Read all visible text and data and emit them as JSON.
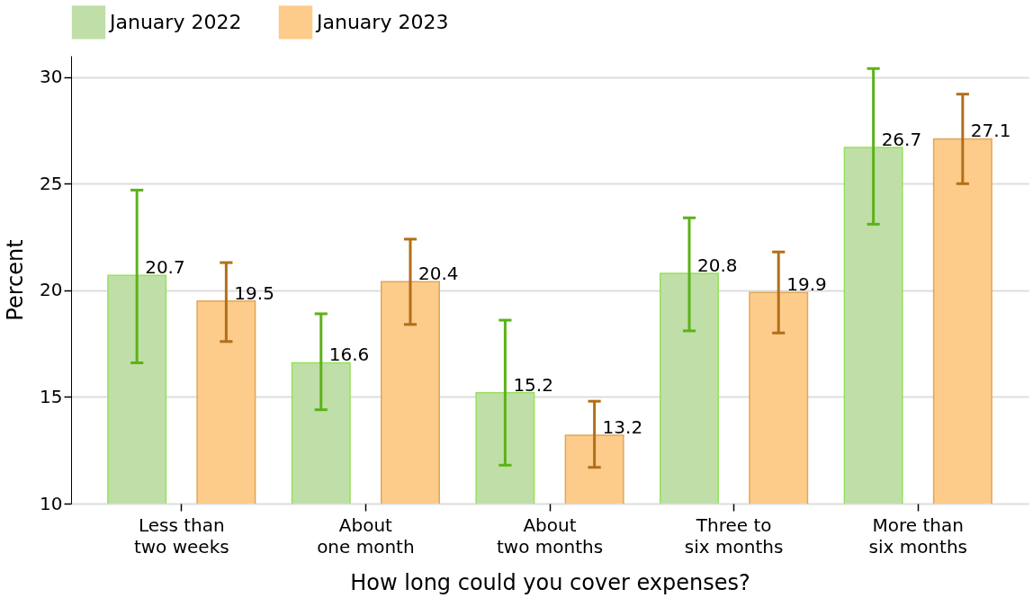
{
  "chart_data": {
    "type": "bar",
    "xlabel": "How long could you cover expenses?",
    "ylabel": "Percent",
    "categories": [
      "Less than two weeks",
      "About one month",
      "About two months",
      "Three to six months",
      "More than six months"
    ],
    "series": [
      {
        "name": "January 2022",
        "color": "#c0dfa8",
        "values": [
          20.7,
          16.6,
          15.2,
          20.8,
          26.7
        ],
        "errors": [
          [
            16.6,
            24.7
          ],
          [
            14.4,
            18.9
          ],
          [
            11.8,
            18.6
          ],
          [
            18.1,
            23.4
          ],
          [
            23.1,
            30.4
          ]
        ]
      },
      {
        "name": "January 2023",
        "color": "#fdcb8a",
        "values": [
          19.5,
          20.4,
          13.2,
          19.9,
          27.1
        ],
        "errors": [
          [
            17.6,
            21.3
          ],
          [
            18.4,
            22.4
          ],
          [
            11.7,
            14.8
          ],
          [
            18.0,
            21.8
          ],
          [
            25.0,
            29.2
          ]
        ]
      }
    ],
    "ylim": [
      10,
      31
    ],
    "yticks": [
      10,
      15,
      20,
      25,
      30
    ],
    "grid": "y",
    "legend": "top",
    "data_labels": true
  }
}
